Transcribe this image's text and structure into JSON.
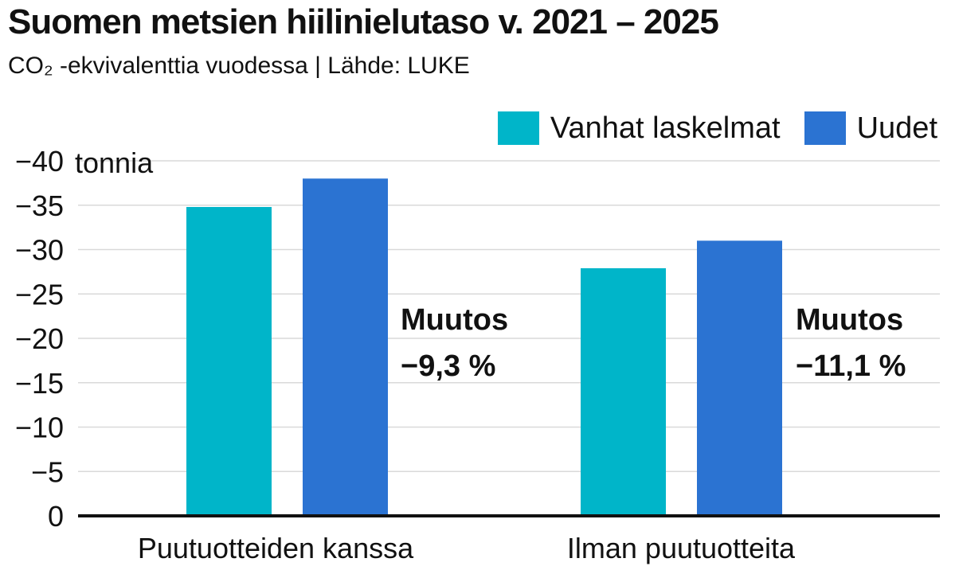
{
  "title": "Suomen metsien hiilinielutaso v. 2021 – 2025",
  "subtitle": "CO₂ -ekvivalenttia vuodessa | Lähde: LUKE",
  "colors": {
    "vanhat": "#00b5c9",
    "uudet": "#2b73d2",
    "grid": "#d9d9d9",
    "axis": "#111111"
  },
  "chart_data": {
    "type": "bar",
    "title": "Suomen metsien hiilinielutaso v. 2021 – 2025",
    "subtitle": "CO₂ -ekvivalenttia vuodessa | Lähde: LUKE",
    "categories": [
      "Puutuotteiden kanssa",
      "Ilman puutuotteita"
    ],
    "series": [
      {
        "name": "Vanhat laskelmat",
        "values": [
          -34.8,
          -27.9
        ]
      },
      {
        "name": "Uudet",
        "values": [
          -38.0,
          -31.0
        ]
      }
    ],
    "y_unit_label": "tonnia",
    "ylim": [
      0,
      -40
    ],
    "y_ticks": [
      {
        "value": -40,
        "label": "−40"
      },
      {
        "value": -35,
        "label": "−35"
      },
      {
        "value": -30,
        "label": "−30"
      },
      {
        "value": -25,
        "label": "−25"
      },
      {
        "value": -20,
        "label": "−20"
      },
      {
        "value": -15,
        "label": "−15"
      },
      {
        "value": -10,
        "label": "−10"
      },
      {
        "value": -5,
        "label": "−5"
      },
      {
        "value": 0,
        "label": "0"
      }
    ],
    "annotations": [
      {
        "title": "Muutos",
        "value": "−9,3 %"
      },
      {
        "title": "Muutos",
        "value": "−11,1 %"
      }
    ],
    "grid": true,
    "legend_position": "top-right"
  }
}
